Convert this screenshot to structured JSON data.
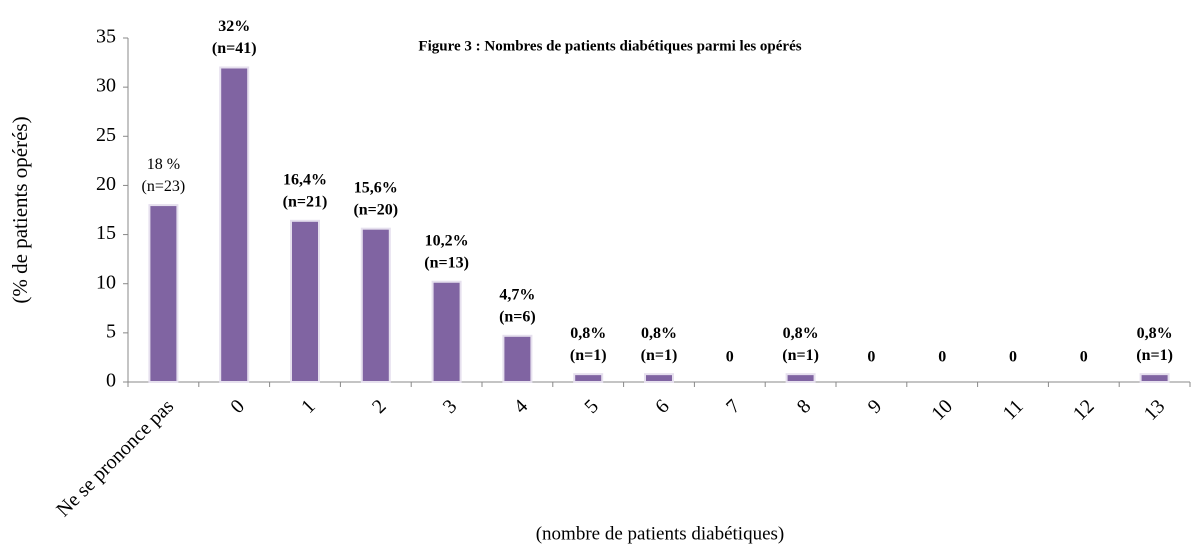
{
  "chart_data": {
    "type": "bar",
    "title": "Figure  3 : Nombres de patients diabétiques parmi les opérés",
    "y_label": "(% de patients opérés)",
    "x_label": "(nombre de patients diabétiques)",
    "categories": [
      "Ne se prononce pas",
      "0",
      "1",
      "2",
      "3",
      "4",
      "5",
      "6",
      "7",
      "8",
      "9",
      "10",
      "11",
      "12",
      "13"
    ],
    "values": [
      18,
      32,
      16.4,
      15.6,
      10.2,
      4.7,
      0.8,
      0.8,
      0,
      0.8,
      0,
      0,
      0,
      0,
      0.8
    ],
    "value_labels": [
      "18 %",
      "32%",
      "16,4%",
      "15,6%",
      "10,2%",
      "4,7%",
      "0,8%",
      "0,8%",
      "0",
      "0,8%",
      "0",
      "0",
      "0",
      "0",
      "0,8%"
    ],
    "count_labels": [
      "(n=23)",
      "(n=41)",
      "(n=21)",
      "(n=20)",
      "(n=13)",
      "(n=6)",
      "(n=1)",
      "(n=1)",
      null,
      "(n=1)",
      null,
      null,
      null,
      null,
      "(n=1)"
    ],
    "color": "#8064a2",
    "ylim": [
      0,
      35
    ],
    "yticks": [
      0,
      5,
      10,
      15,
      20,
      25,
      30,
      35
    ],
    "grid": false
  }
}
